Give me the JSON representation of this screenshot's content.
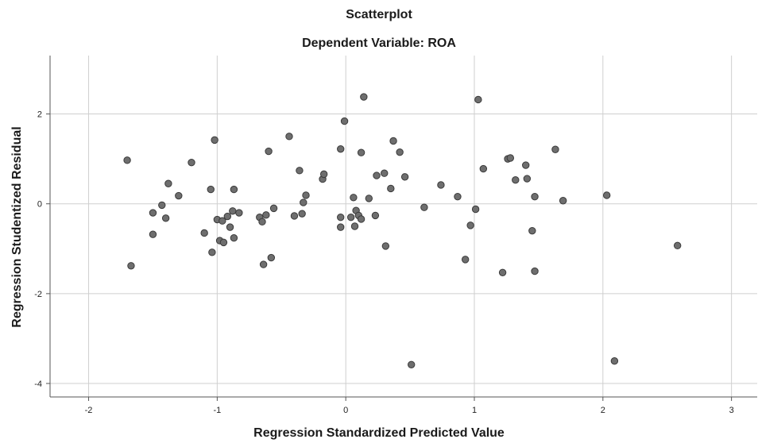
{
  "chart_data": {
    "type": "scatter",
    "title": "Scatterplot",
    "subtitle": "Dependent Variable: ROA",
    "xlabel": "Regression Standardized Predicted Value",
    "ylabel": "Regression Studentized Residual",
    "xlim": [
      -2.3,
      3.2
    ],
    "ylim": [
      -4.3,
      3.3
    ],
    "xticks": [
      -2,
      -1,
      0,
      1,
      2,
      3
    ],
    "yticks": [
      -4,
      -2,
      0,
      2
    ],
    "grid": true,
    "point_color": "#6e6e6e",
    "point_stroke": "#3a3a3a",
    "points": [
      [
        -1.7,
        0.97
      ],
      [
        -1.67,
        -1.38
      ],
      [
        -1.5,
        -0.2
      ],
      [
        -1.5,
        -0.68
      ],
      [
        -1.43,
        -0.03
      ],
      [
        -1.4,
        -0.32
      ],
      [
        -1.38,
        0.45
      ],
      [
        -1.3,
        0.18
      ],
      [
        -1.2,
        0.92
      ],
      [
        -1.1,
        -0.65
      ],
      [
        -1.05,
        0.32
      ],
      [
        -1.04,
        -1.08
      ],
      [
        -1.02,
        1.42
      ],
      [
        -1.0,
        -0.35
      ],
      [
        -0.98,
        -0.82
      ],
      [
        -0.96,
        -0.38
      ],
      [
        -0.95,
        -0.86
      ],
      [
        -0.92,
        -0.28
      ],
      [
        -0.9,
        -0.52
      ],
      [
        -0.88,
        -0.16
      ],
      [
        -0.87,
        0.32
      ],
      [
        -0.87,
        -0.76
      ],
      [
        -0.83,
        -0.2
      ],
      [
        -0.67,
        -0.3
      ],
      [
        -0.65,
        -0.4
      ],
      [
        -0.64,
        -1.35
      ],
      [
        -0.62,
        -0.25
      ],
      [
        -0.6,
        1.17
      ],
      [
        -0.58,
        -1.2
      ],
      [
        -0.56,
        -0.1
      ],
      [
        -0.44,
        1.5
      ],
      [
        -0.4,
        -0.27
      ],
      [
        -0.36,
        0.74
      ],
      [
        -0.34,
        -0.22
      ],
      [
        -0.33,
        0.03
      ],
      [
        -0.31,
        0.19
      ],
      [
        -0.18,
        0.55
      ],
      [
        -0.17,
        0.66
      ],
      [
        -0.04,
        1.22
      ],
      [
        -0.04,
        -0.3
      ],
      [
        -0.04,
        -0.52
      ],
      [
        -0.01,
        1.84
      ],
      [
        0.04,
        -0.3
      ],
      [
        0.06,
        0.14
      ],
      [
        0.07,
        -0.5
      ],
      [
        0.08,
        -0.15
      ],
      [
        0.1,
        -0.26
      ],
      [
        0.12,
        -0.34
      ],
      [
        0.12,
        1.14
      ],
      [
        0.14,
        2.38
      ],
      [
        0.18,
        0.12
      ],
      [
        0.23,
        -0.26
      ],
      [
        0.24,
        0.63
      ],
      [
        0.3,
        0.68
      ],
      [
        0.31,
        -0.94
      ],
      [
        0.35,
        0.34
      ],
      [
        0.37,
        1.4
      ],
      [
        0.42,
        1.15
      ],
      [
        0.46,
        0.6
      ],
      [
        0.51,
        -3.58
      ],
      [
        0.61,
        -0.08
      ],
      [
        0.74,
        0.42
      ],
      [
        0.87,
        0.16
      ],
      [
        0.93,
        -1.24
      ],
      [
        0.97,
        -0.48
      ],
      [
        1.01,
        -0.12
      ],
      [
        1.03,
        2.32
      ],
      [
        1.07,
        0.78
      ],
      [
        1.22,
        -1.53
      ],
      [
        1.26,
        1.0
      ],
      [
        1.28,
        1.02
      ],
      [
        1.32,
        0.53
      ],
      [
        1.4,
        0.86
      ],
      [
        1.41,
        0.56
      ],
      [
        1.45,
        -0.6
      ],
      [
        1.47,
        0.16
      ],
      [
        1.47,
        -1.5
      ],
      [
        1.63,
        1.21
      ],
      [
        1.69,
        0.07
      ],
      [
        2.03,
        0.19
      ],
      [
        2.09,
        -3.5
      ],
      [
        2.58,
        -0.93
      ]
    ]
  }
}
